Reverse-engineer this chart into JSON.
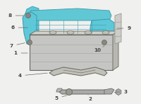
{
  "bg_color": "#f0f0ee",
  "battery_color": "#c5c5c3",
  "battery_edge": "#888880",
  "battery_top_color": "#b8b8b0",
  "tray_color": "#5ec8d8",
  "tray_edge_color": "#3a9aaa",
  "tray_dark": "#3aacbc",
  "line_color": "#666660",
  "text_color": "#444440",
  "part_gray": "#aaaaaa",
  "part_gray_edge": "#777770",
  "rail_color": "#ccccca",
  "rail_edge": "#999990"
}
